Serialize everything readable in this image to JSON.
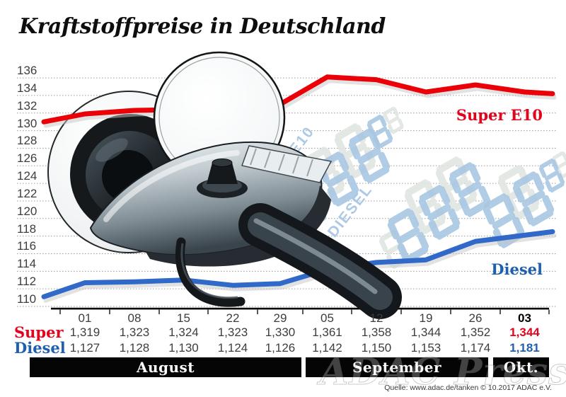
{
  "title": "Kraftstoffpreise in Deutschland",
  "watermark": "ADAC Presse",
  "source": "Quelle: www.adac.de/tanken   © 10.2017   ADAC e.V.",
  "art": {
    "display_row1": "SUPER E10",
    "display_row2": "DIESEL",
    "digit_blue": "#a9c7e3",
    "digit_gray": "#e0e6e2"
  },
  "colors": {
    "super_text": "#e2031c",
    "super_line": "#ec0008",
    "diesel_text": "#1f5fb0",
    "diesel_line": "#3069c8",
    "grid": "#9a9a9a",
    "axis": "#000000",
    "value_text": "#3d3d3d",
    "month_bar_bg": "#050505",
    "month_bar_text": "#ffffff"
  },
  "chart_data": {
    "type": "line",
    "title": "Kraftstoffpreise in Deutschland",
    "xlabel": "",
    "ylabel": "",
    "ylim": [
      110,
      136
    ],
    "grid": true,
    "y_ticks": [
      136,
      134,
      132,
      130,
      128,
      126,
      124,
      122,
      120,
      118,
      116,
      114,
      112,
      110
    ],
    "categories": [
      "01",
      "08",
      "15",
      "22",
      "29",
      "05",
      "12",
      "19",
      "26",
      "03"
    ],
    "emphasized_category_index": 9,
    "months": [
      {
        "label": "August",
        "cols": [
          0,
          4
        ]
      },
      {
        "label": "September",
        "cols": [
          5,
          8
        ]
      },
      {
        "label": "Okt.",
        "cols": [
          9,
          9
        ]
      }
    ],
    "series": [
      {
        "name": "Super",
        "chart_label": "Super E10",
        "color_key": "super",
        "values": [
          131.9,
          132.3,
          132.4,
          132.3,
          133.0,
          136.1,
          135.8,
          134.4,
          135.2,
          134.4
        ],
        "table_values": [
          "1,319",
          "1,323",
          "1,324",
          "1,323",
          "1,330",
          "1,361",
          "1,358",
          "1,344",
          "1,352",
          "1,344"
        ],
        "edge_start": 131.0,
        "edge_end": 134.2
      },
      {
        "name": "Diesel",
        "chart_label": "Diesel",
        "color_key": "diesel",
        "values": [
          112.7,
          112.8,
          113.0,
          112.4,
          112.6,
          114.2,
          115.0,
          115.3,
          117.4,
          118.1
        ],
        "table_values": [
          "1,127",
          "1,128",
          "1,130",
          "1,124",
          "1,126",
          "1,142",
          "1,150",
          "1,153",
          "1,174",
          "1,181"
        ],
        "edge_start": 111.1,
        "edge_end": 118.5
      }
    ],
    "legend_position": "labels-on-chart-right"
  }
}
